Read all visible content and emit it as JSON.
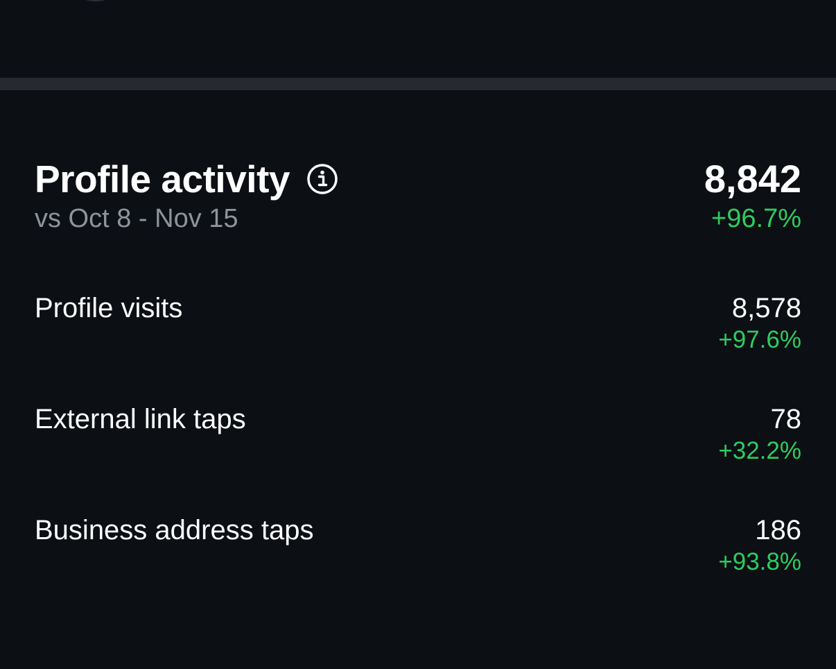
{
  "profile_activity": {
    "title": "Profile activity",
    "info_icon": "info-circle-icon",
    "comparison": "vs Oct 8 - Nov 15",
    "total": "8,842",
    "total_change": "+96.7%",
    "metrics": [
      {
        "label": "Profile visits",
        "value": "8,578",
        "change": "+97.6%"
      },
      {
        "label": "External link taps",
        "value": "78",
        "change": "+32.2%"
      },
      {
        "label": "Business address taps",
        "value": "186",
        "change": "+93.8%"
      }
    ]
  },
  "colors": {
    "background": "#0c0f14",
    "divider": "#262a30",
    "positive": "#2ecc5f",
    "muted_text": "#8e949c"
  }
}
